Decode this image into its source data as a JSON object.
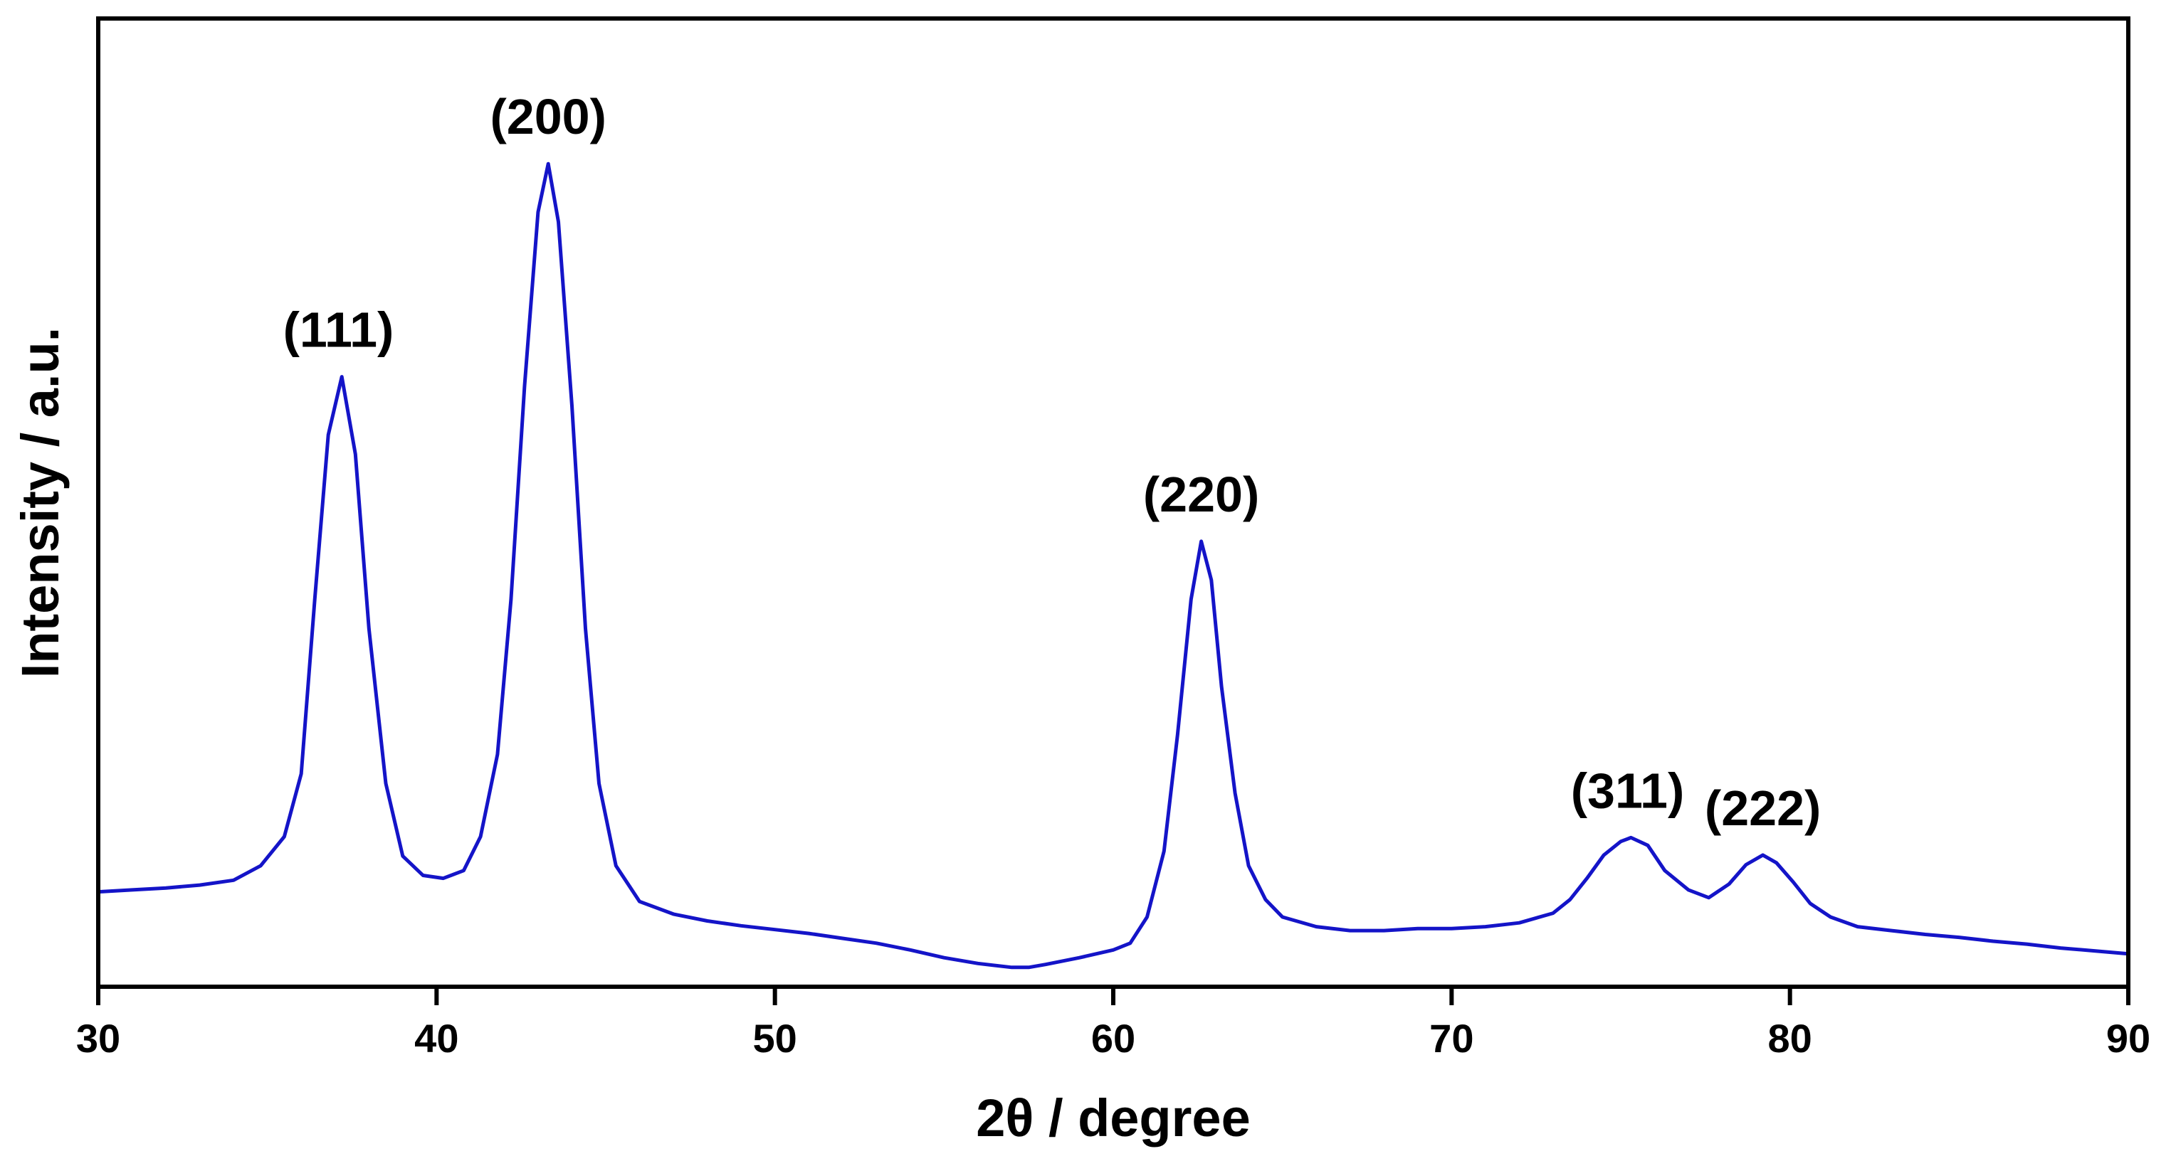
{
  "chart_data": {
    "type": "line",
    "xlabel": "2θ / degree",
    "ylabel": "Intensity / a.u.",
    "xlim": [
      30,
      90
    ],
    "ylim": [
      0,
      100
    ],
    "x_ticks": [
      "30",
      "40",
      "50",
      "60",
      "70",
      "80",
      "90"
    ],
    "y_ticks": [],
    "grid": false,
    "legend": "none",
    "colors": {
      "series": "#1414C8",
      "axes": "#000000",
      "text": "#000000"
    },
    "series": [
      {
        "x": [
          30,
          31,
          32,
          33,
          34,
          34.8,
          35.5,
          36,
          36.4,
          36.8,
          37.2,
          37.6,
          38,
          38.5,
          39,
          39.6,
          40.2,
          40.8,
          41.3,
          41.8,
          42.2,
          42.6,
          43,
          43.3,
          43.6,
          44,
          44.4,
          44.8,
          45.3,
          46,
          47,
          48,
          49,
          50,
          51,
          52,
          53,
          54,
          55,
          56,
          57,
          57.5,
          58,
          59,
          60,
          60.5,
          61,
          61.5,
          61.9,
          62.3,
          62.6,
          62.9,
          63.2,
          63.6,
          64,
          64.5,
          65,
          66,
          67,
          68,
          69,
          70,
          71,
          72,
          73,
          73.5,
          74,
          74.5,
          75,
          75.3,
          75.8,
          76.3,
          77,
          77.6,
          78.2,
          78.7,
          79.2,
          79.6,
          80.1,
          80.6,
          81.2,
          82,
          83,
          84,
          85,
          86,
          87,
          88,
          89,
          90
        ],
        "y": [
          9.8,
          10.0,
          10.2,
          10.5,
          11.0,
          12.5,
          15.5,
          22,
          40,
          57,
          63,
          55,
          37,
          21,
          13.5,
          11.5,
          11.2,
          12.0,
          15.5,
          24,
          40,
          62,
          80,
          85,
          79,
          60,
          37,
          21,
          12.5,
          8.8,
          7.5,
          6.8,
          6.3,
          5.9,
          5.5,
          5.0,
          4.5,
          3.8,
          3.0,
          2.4,
          2.0,
          2.0,
          2.3,
          3.0,
          3.8,
          4.5,
          7.2,
          14,
          26,
          40,
          46,
          42,
          31,
          20,
          12.5,
          9.0,
          7.2,
          6.2,
          5.8,
          5.8,
          6.0,
          6.0,
          6.2,
          6.6,
          7.6,
          9.0,
          11.2,
          13.6,
          15.0,
          15.4,
          14.6,
          12.0,
          10.0,
          9.2,
          10.6,
          12.6,
          13.6,
          12.8,
          10.8,
          8.6,
          7.2,
          6.2,
          5.8,
          5.4,
          5.1,
          4.7,
          4.4,
          4.0,
          3.7,
          3.4
        ]
      }
    ],
    "annotations": [
      {
        "text": "(111)",
        "x": 37.1,
        "y": 63
      },
      {
        "text": "(200)",
        "x": 43.3,
        "y": 85
      },
      {
        "text": "(220)",
        "x": 62.6,
        "y": 46
      },
      {
        "text": "(311)",
        "x": 75.2,
        "y": 15.4
      },
      {
        "text": "(222)",
        "x": 79.2,
        "y": 13.6
      }
    ]
  }
}
